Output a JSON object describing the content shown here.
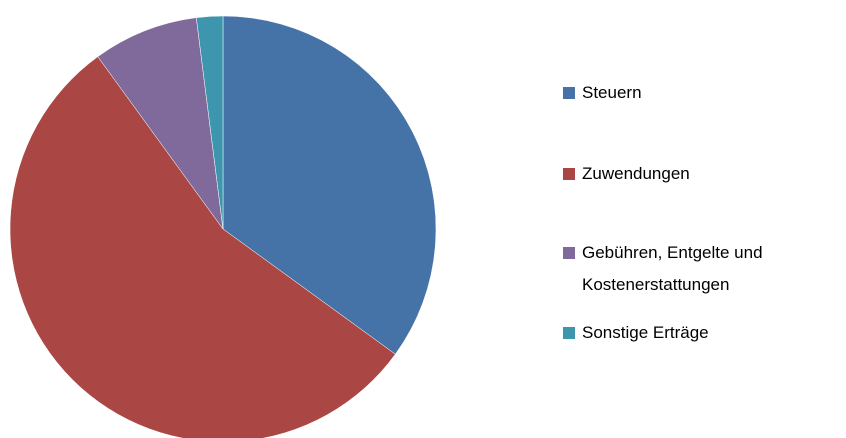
{
  "chart_data": {
    "type": "pie",
    "categories": [
      "Steuern",
      "Zuwendungen",
      "Gebühren, Entgelte und Kostenerstattungen",
      "Sonstige Erträge"
    ],
    "values": [
      35,
      55,
      8,
      2
    ],
    "colors": [
      "#4572a7",
      "#aa4643",
      "#80699b",
      "#3d96ae"
    ],
    "legend": "right"
  }
}
